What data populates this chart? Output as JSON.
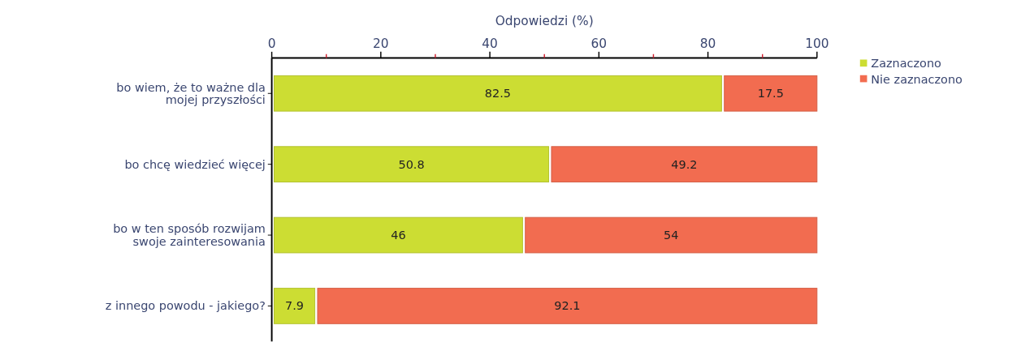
{
  "chart_data": {
    "type": "bar",
    "orientation": "horizontal",
    "stacked": true,
    "xlabel": "Odpowiedzi (%)",
    "categories": [
      "bo wiem, że to ważne dla mojej przyszłości",
      "bo chcę wiedzieć więcej",
      "bo w ten sposób rozwijam swoje zainteresowania",
      "z innego powodu - jakiego?"
    ],
    "series": [
      {
        "name": "Zaznaczono",
        "color": "#ccdd33",
        "values": [
          82.5,
          50.8,
          46,
          7.9
        ]
      },
      {
        "name": "Nie zaznaczono",
        "color": "#f26c50",
        "values": [
          17.5,
          49.2,
          54,
          92.1
        ]
      }
    ],
    "xlim": [
      0,
      100
    ],
    "xticks": [
      0,
      {
        "value": 10,
        "label": null
      },
      20,
      {
        "value": 30,
        "label": null
      },
      40,
      {
        "value": 50,
        "label": null
      },
      60,
      {
        "value": 70,
        "label": null
      },
      80,
      {
        "value": 90,
        "label": null
      },
      100
    ],
    "data_labels": true,
    "legend": "top right",
    "grid": false
  }
}
